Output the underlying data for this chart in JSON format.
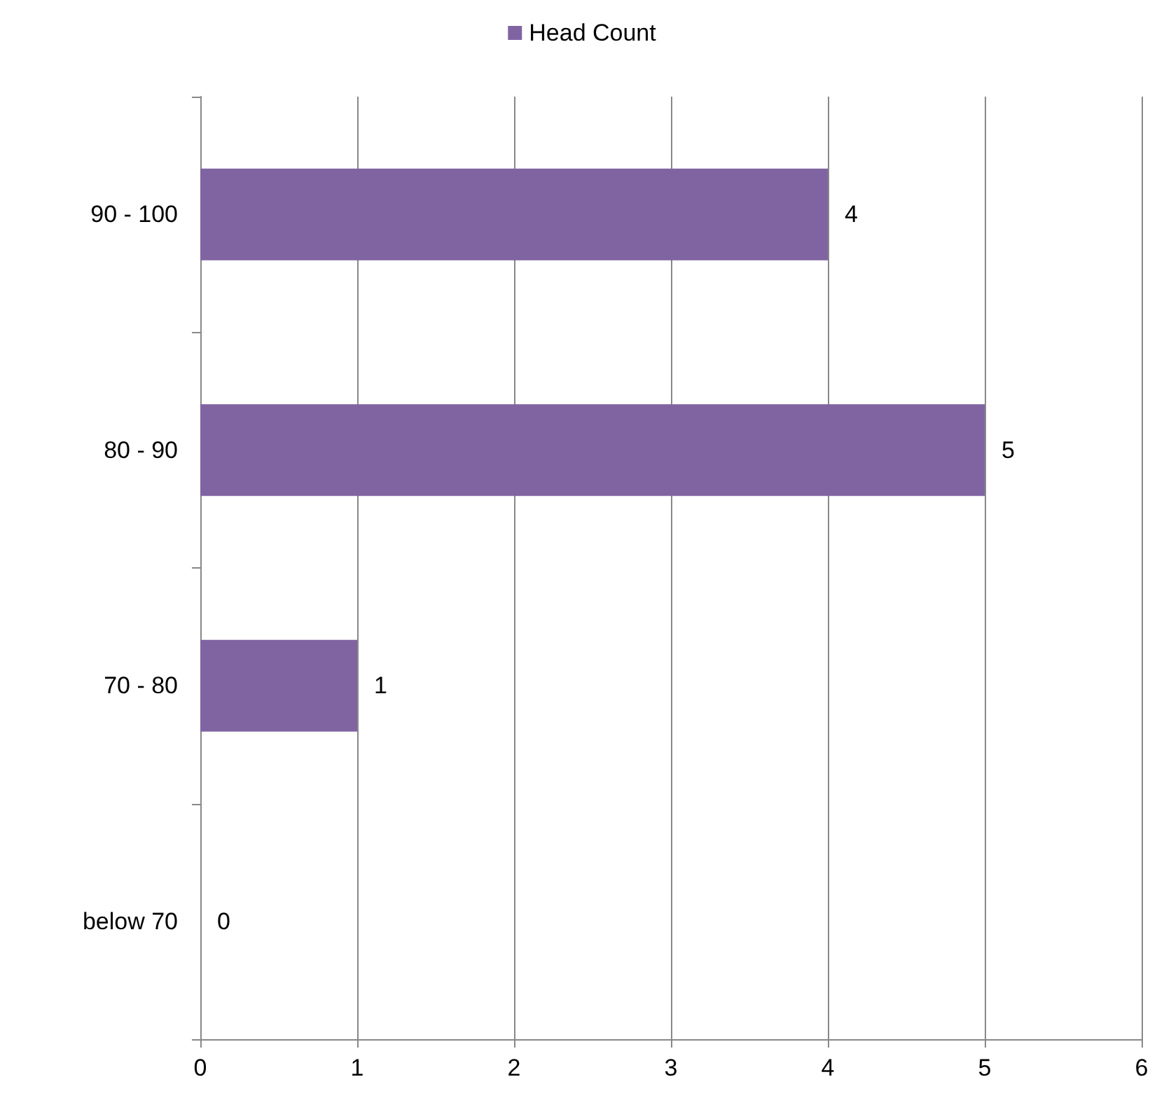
{
  "chart_data": {
    "type": "bar",
    "orientation": "horizontal",
    "categories": [
      "90 - 100",
      "80 - 90",
      "70 - 80",
      "below 70"
    ],
    "series": [
      {
        "name": "Head Count",
        "color": "#8064a2",
        "values": [
          4,
          5,
          1,
          0
        ]
      }
    ],
    "xlim": [
      0,
      6
    ],
    "xticks": [
      0,
      1,
      2,
      3,
      4,
      5,
      6
    ],
    "grid": "x",
    "legend": "top",
    "data_labels": true
  }
}
